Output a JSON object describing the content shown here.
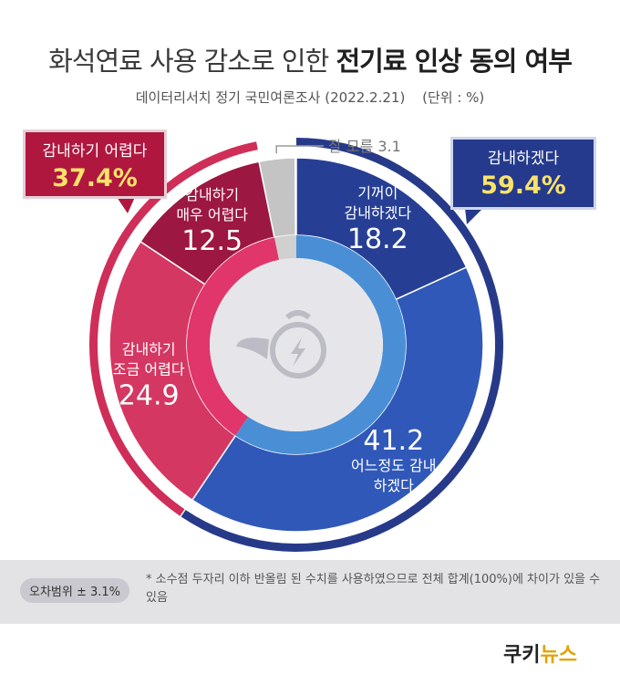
{
  "title": {
    "regular": "화석연료 사용 감소로 인한",
    "bold": "전기료 인상 동의 여부"
  },
  "subtitle": {
    "source": "데이터리서치 정기 국민여론조사 (2022.2.21)",
    "unit": "(단위 : %)"
  },
  "callouts": {
    "difficult": {
      "label": "감내하기 어렵다",
      "value": "37.4%"
    },
    "bearable": {
      "label": "감내하겠다",
      "value": "59.4%"
    }
  },
  "chart_data": {
    "type": "pie",
    "start_angle_deg": 0,
    "direction": "clockwise",
    "slices": [
      {
        "label_lines": [
          "기꺼이",
          "감내하겠다"
        ],
        "value": 18.2,
        "color": "#263f95"
      },
      {
        "label_lines": [
          "어느정도 감내",
          "하겠다"
        ],
        "value": 41.2,
        "color": "#3058b8",
        "label_below_value": true
      },
      {
        "label_lines": [
          "감내하기",
          "조금 어렵다"
        ],
        "value": 24.9,
        "color": "#d43762"
      },
      {
        "label_lines": [
          "감내하기",
          "매우 어렵다"
        ],
        "value": 12.5,
        "color": "#9c1741"
      },
      {
        "label_lines": [
          "잘 모름 3.1"
        ],
        "value": 3.1,
        "color": "#c4c4c4",
        "external": true
      }
    ],
    "inner_rings": [
      {
        "name": "bearable",
        "color": "#4a8fd6",
        "value": 59.4
      },
      {
        "name": "difficult",
        "color": "#e0366b",
        "value": 37.4
      }
    ],
    "outer_arcs": [
      {
        "name": "bearable",
        "color": "#273a8a",
        "value": 59.4
      },
      {
        "name": "difficult",
        "color": "#cf2e58",
        "value": 37.4
      }
    ]
  },
  "footer": {
    "margin_label": "오차범위 ± 3.1%",
    "note": "* 소수점 두자리 이하 반올림 된 수치를 사용하였으므로 전체 합계(100%)에 차이가 있을 수 있음"
  },
  "logo": {
    "main": "쿠키",
    "accent": "뉴스"
  }
}
